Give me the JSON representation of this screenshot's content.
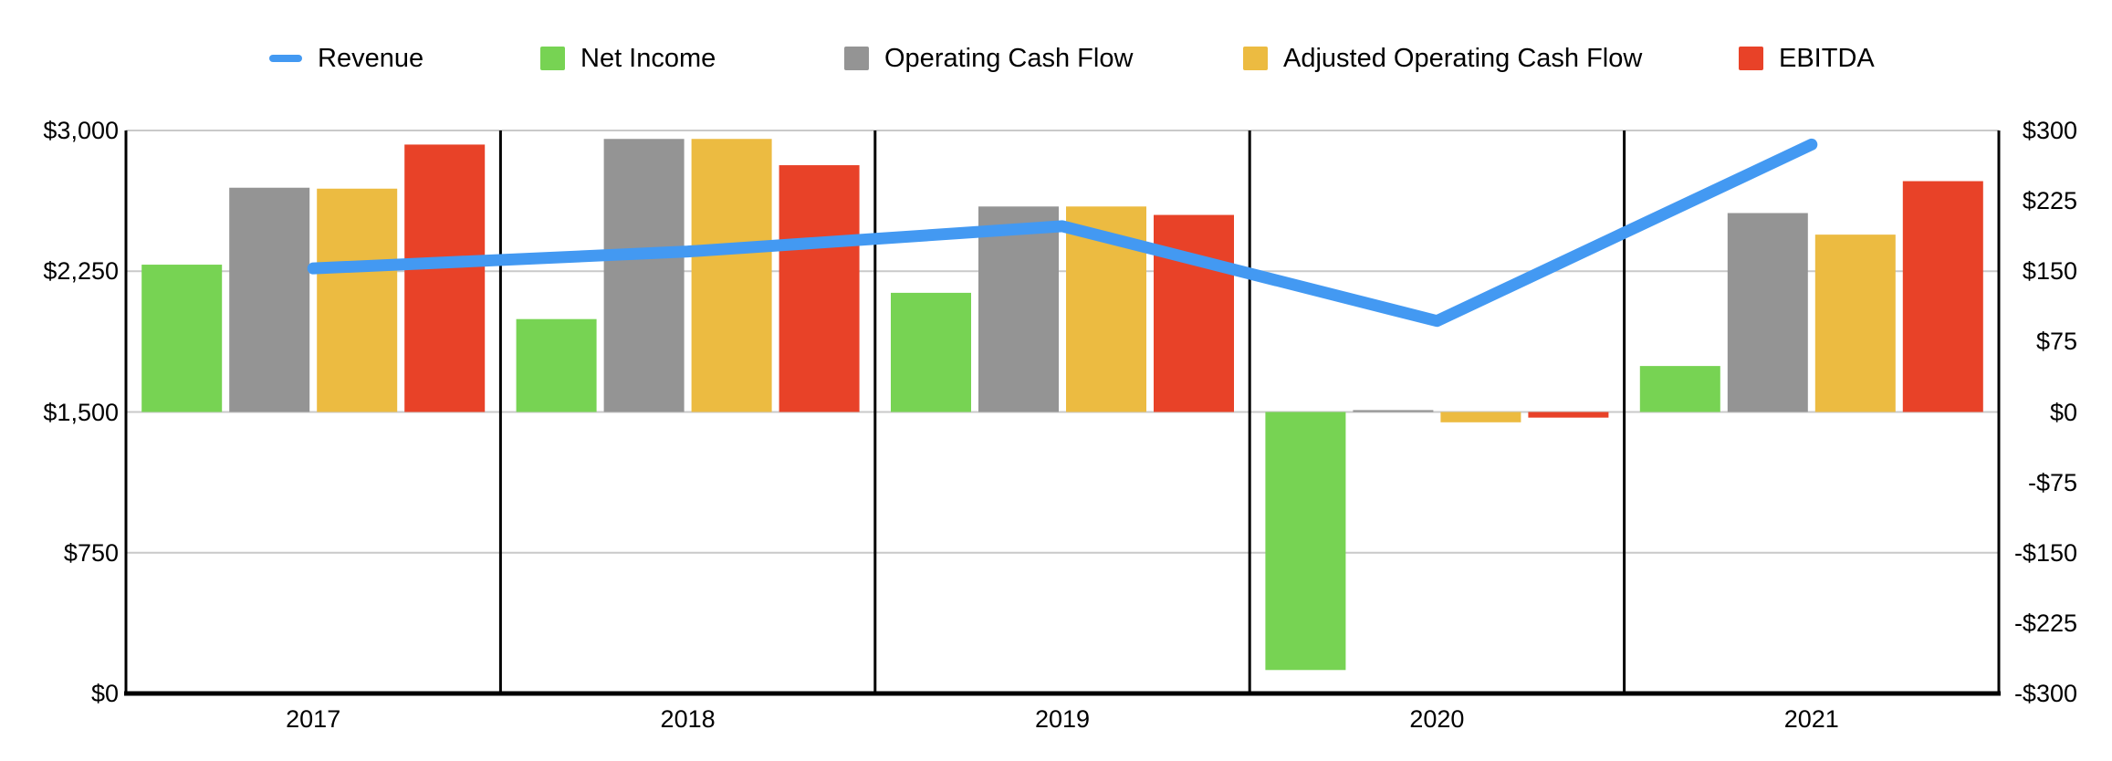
{
  "chart_data": {
    "type": "bar+line combo",
    "title": "",
    "categories": [
      "2017",
      "2018",
      "2019",
      "2020",
      "2021"
    ],
    "series": [
      {
        "name": "Revenue",
        "type": "line",
        "axis": "left",
        "color": "#4399F2",
        "values": [
          2265,
          2355,
          2490,
          1985,
          2925
        ]
      },
      {
        "name": "Net Income",
        "type": "bar",
        "axis": "right",
        "color": "#77D353",
        "values": [
          157,
          99,
          127,
          -275,
          49
        ]
      },
      {
        "name": "Operating Cash Flow",
        "type": "bar",
        "axis": "right",
        "color": "#949494",
        "values": [
          239,
          291,
          219,
          2,
          212
        ]
      },
      {
        "name": "Adjusted Operating Cash Flow",
        "type": "bar",
        "axis": "right",
        "color": "#ECBB41",
        "values": [
          238,
          291,
          219,
          -11,
          189
        ]
      },
      {
        "name": "EBITDA",
        "type": "bar",
        "axis": "right",
        "color": "#E84228",
        "values": [
          285,
          263,
          210,
          -6,
          246
        ]
      }
    ],
    "left_axis": {
      "min": 0,
      "max": 3000,
      "tick_labels": [
        "$3,000",
        "$2,250",
        "$1,500",
        "$750",
        "$0"
      ]
    },
    "right_axis": {
      "min": -300,
      "max": 300,
      "tick_labels": [
        "$300",
        "$225",
        "$150",
        "$75",
        "$0",
        "-$75",
        "-$150",
        "-$225",
        "-$300"
      ]
    },
    "legend_position": "top",
    "grid": {
      "horizontal_gridlines_at_left_values": [
        3000,
        2250,
        1500,
        750
      ],
      "gridline_color": "#C9C9C9",
      "vertical_panel_separators": "black line between each year panel and at plot edges",
      "zero_baseline_right_axis_equals_left_value": 1500,
      "bottom_axis_color": "#000000"
    }
  }
}
